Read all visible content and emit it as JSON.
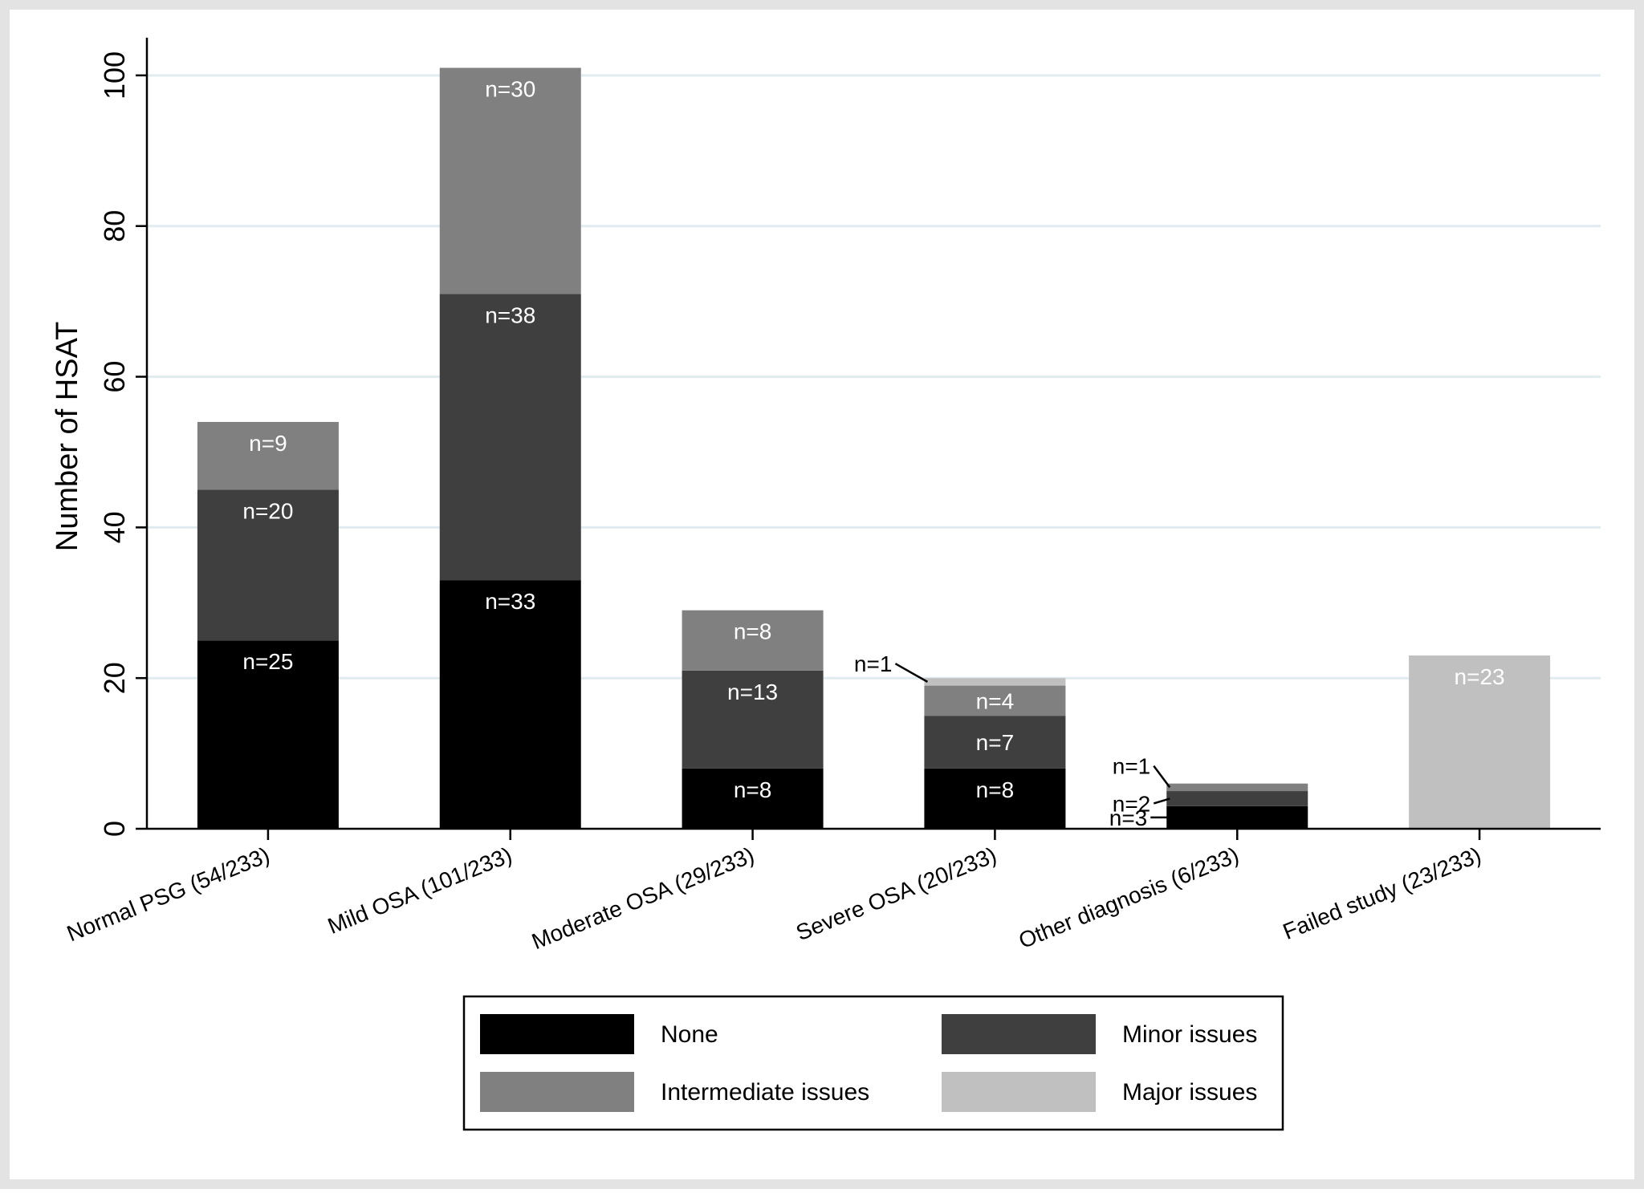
{
  "chart_data": {
    "type": "bar",
    "stacked": true,
    "title": "",
    "xlabel": "",
    "ylabel": "Number of HSAT",
    "ylim": [
      0,
      105
    ],
    "yticks": [
      0,
      20,
      40,
      60,
      80,
      100
    ],
    "grid": true,
    "legend_position": "bottom",
    "categories": [
      "Normal PSG (54/233)",
      "Mild OSA (101/233)",
      "Moderate OSA (29/233)",
      "Severe OSA (20/233)",
      "Other diagnosis (6/233)",
      "Failed study (23/233)"
    ],
    "series": [
      {
        "name": "None",
        "values": [
          25,
          33,
          8,
          8,
          3,
          0
        ]
      },
      {
        "name": "Minor issues",
        "values": [
          20,
          38,
          13,
          7,
          2,
          0
        ]
      },
      {
        "name": "Intermediate issues",
        "values": [
          9,
          30,
          8,
          4,
          1,
          0
        ]
      },
      {
        "name": "Major issues",
        "values": [
          0,
          0,
          0,
          1,
          0,
          23
        ]
      }
    ],
    "data_labels": [
      [
        "n=25",
        "n=20",
        "n=9",
        ""
      ],
      [
        "n=33",
        "n=38",
        "n=30",
        ""
      ],
      [
        "n=8",
        "n=13",
        "n=8",
        ""
      ],
      [
        "n=8",
        "n=7",
        "n=4",
        "n=1"
      ],
      [
        "n=3",
        "n=2",
        "n=1",
        ""
      ],
      [
        "",
        "",
        "",
        "n=23"
      ]
    ],
    "legend": [
      "None",
      "Minor issues",
      "Intermediate issues",
      "Major issues"
    ]
  },
  "colors": {
    "outer_background": "#e3e3e3",
    "plot_background": "#ffffff",
    "gridline": "#e0ecf0",
    "axis": "#000000",
    "none": "#000000",
    "minor": "#3f3f3f",
    "intermediate": "#808080",
    "major": "#c0c0c0",
    "label_light": "#ffffff",
    "label_dark": "#000000"
  }
}
